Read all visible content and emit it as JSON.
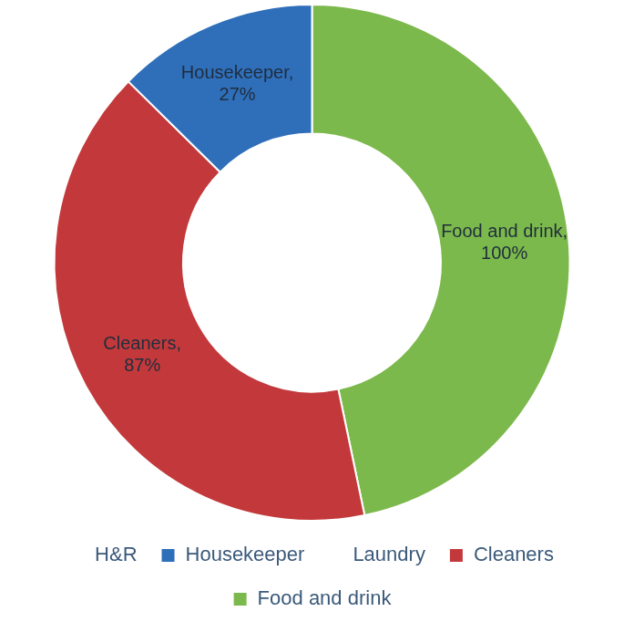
{
  "chart_data": {
    "type": "doughnut",
    "categories": [
      "Food and drink",
      "Cleaners",
      "Laundry",
      "Housekeeper",
      "H&R"
    ],
    "values": [
      100,
      87,
      0,
      27,
      0
    ],
    "value_labels": [
      "Food and drink, 100%",
      "Cleaners, 87%",
      null,
      "Housekeeper, 27%",
      null
    ],
    "colors": [
      "#7cb94c",
      "#c3393b",
      "#ffffff",
      "#2f6fba",
      "#ffffff"
    ],
    "data_labels": true,
    "legend": "bottom"
  }
}
